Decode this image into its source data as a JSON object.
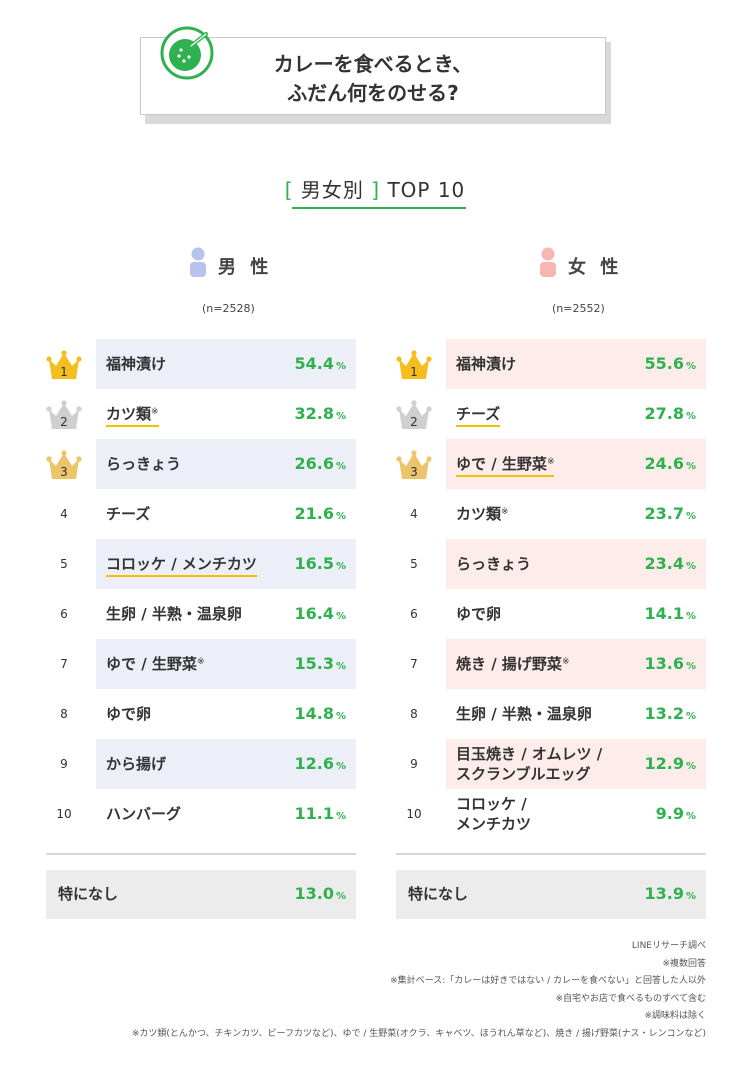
{
  "title": {
    "line1": "カレーを食べるとき、",
    "line2": "ふだん何をのせる?"
  },
  "subtitle": {
    "bracket_open": "[",
    "text": "男女別",
    "bracket_close": "]",
    "top": "TOP 10"
  },
  "colors": {
    "accent": "#2fb14f",
    "male_row": "#eceef8",
    "female_row": "#fdecea",
    "male_icon": "#b7c3ea",
    "female_icon": "#f7b7b1",
    "gold": "#f2c200"
  },
  "male": {
    "label": "男 性",
    "n": "(n=2528)",
    "none_label": "特になし",
    "none_value": "13.0",
    "items": [
      {
        "rank": "1",
        "label": "福神漬け",
        "note": "",
        "value": "54.4"
      },
      {
        "rank": "2",
        "label": "カツ類",
        "note": "※",
        "value": "32.8"
      },
      {
        "rank": "3",
        "label": "らっきょう",
        "note": "",
        "value": "26.6"
      },
      {
        "rank": "4",
        "label": "チーズ",
        "note": "",
        "value": "21.6"
      },
      {
        "rank": "5",
        "label": "コロッケ / メンチカツ",
        "note": "",
        "value": "16.5"
      },
      {
        "rank": "6",
        "label": "生卵 / 半熟・温泉卵",
        "note": "",
        "value": "16.4"
      },
      {
        "rank": "7",
        "label": "ゆで / 生野菜",
        "note": "※",
        "value": "15.3"
      },
      {
        "rank": "8",
        "label": "ゆで卵",
        "note": "",
        "value": "14.8"
      },
      {
        "rank": "9",
        "label": "から揚げ",
        "note": "",
        "value": "12.6"
      },
      {
        "rank": "10",
        "label": "ハンバーグ",
        "note": "",
        "value": "11.1"
      }
    ]
  },
  "female": {
    "label": "女 性",
    "n": "(n=2552)",
    "none_label": "特になし",
    "none_value": "13.9",
    "items": [
      {
        "rank": "1",
        "label": "福神漬け",
        "note": "",
        "value": "55.6"
      },
      {
        "rank": "2",
        "label": "チーズ",
        "note": "",
        "value": "27.8"
      },
      {
        "rank": "3",
        "label": "ゆで / 生野菜",
        "note": "※",
        "value": "24.6"
      },
      {
        "rank": "4",
        "label": "カツ類",
        "note": "※",
        "value": "23.7"
      },
      {
        "rank": "5",
        "label": "らっきょう",
        "note": "",
        "value": "23.4"
      },
      {
        "rank": "6",
        "label": "ゆで卵",
        "note": "",
        "value": "14.1"
      },
      {
        "rank": "7",
        "label": "焼き / 揚げ野菜",
        "note": "※",
        "value": "13.6"
      },
      {
        "rank": "8",
        "label": "生卵 / 半熟・温泉卵",
        "note": "",
        "value": "13.2"
      },
      {
        "rank": "9",
        "label": "目玉焼き / オムレツ / スクランブルエッグ",
        "line1": "目玉焼き / オムレツ /",
        "line2": "スクランブルエッグ",
        "note": "",
        "value": "12.9"
      },
      {
        "rank": "10",
        "label": "コロッケ / メンチカツ",
        "line1": "コロッケ /",
        "line2": "メンチカツ",
        "note": "",
        "value": "9.9"
      }
    ]
  },
  "unit": "%",
  "notes": [
    "LINEリサーチ調べ",
    "※複数回答",
    "※集計ベース:「カレーは好きではない / カレーを食べない」と回答した人以外",
    "※自宅やお店で食べるものすべて含む",
    "※調味料は除く",
    "※カツ類(とんかつ、チキンカツ、ビーフカツなど)、ゆで / 生野菜(オクラ、キャベツ、ほうれん草など)、焼き / 揚げ野菜(ナス・レンコンなど)"
  ],
  "chart_data": {
    "type": "table",
    "title": "カレーを食べるとき、ふだん何をのせる?",
    "subtitle": "[男女別] TOP 10",
    "series": [
      {
        "name": "男性",
        "categories": [
          "福神漬け",
          "カツ類",
          "らっきょう",
          "チーズ",
          "コロッケ / メンチカツ",
          "生卵 / 半熟・温泉卵",
          "ゆで / 生野菜",
          "ゆで卵",
          "から揚げ",
          "ハンバーグ",
          "特になし"
        ],
        "values": [
          54.4,
          32.8,
          26.6,
          21.6,
          16.5,
          16.4,
          15.3,
          14.8,
          12.6,
          11.1,
          13.0
        ]
      },
      {
        "name": "女性",
        "categories": [
          "福神漬け",
          "チーズ",
          "ゆで / 生野菜",
          "カツ類",
          "らっきょう",
          "ゆで卵",
          "焼き / 揚げ野菜",
          "生卵 / 半熟・温泉卵",
          "目玉焼き / オムレツ / スクランブルエッグ",
          "コロッケ / メンチカツ",
          "特になし"
        ],
        "values": [
          55.6,
          27.8,
          24.6,
          23.7,
          23.4,
          14.1,
          13.6,
          13.2,
          12.9,
          9.9,
          13.9
        ]
      }
    ]
  }
}
